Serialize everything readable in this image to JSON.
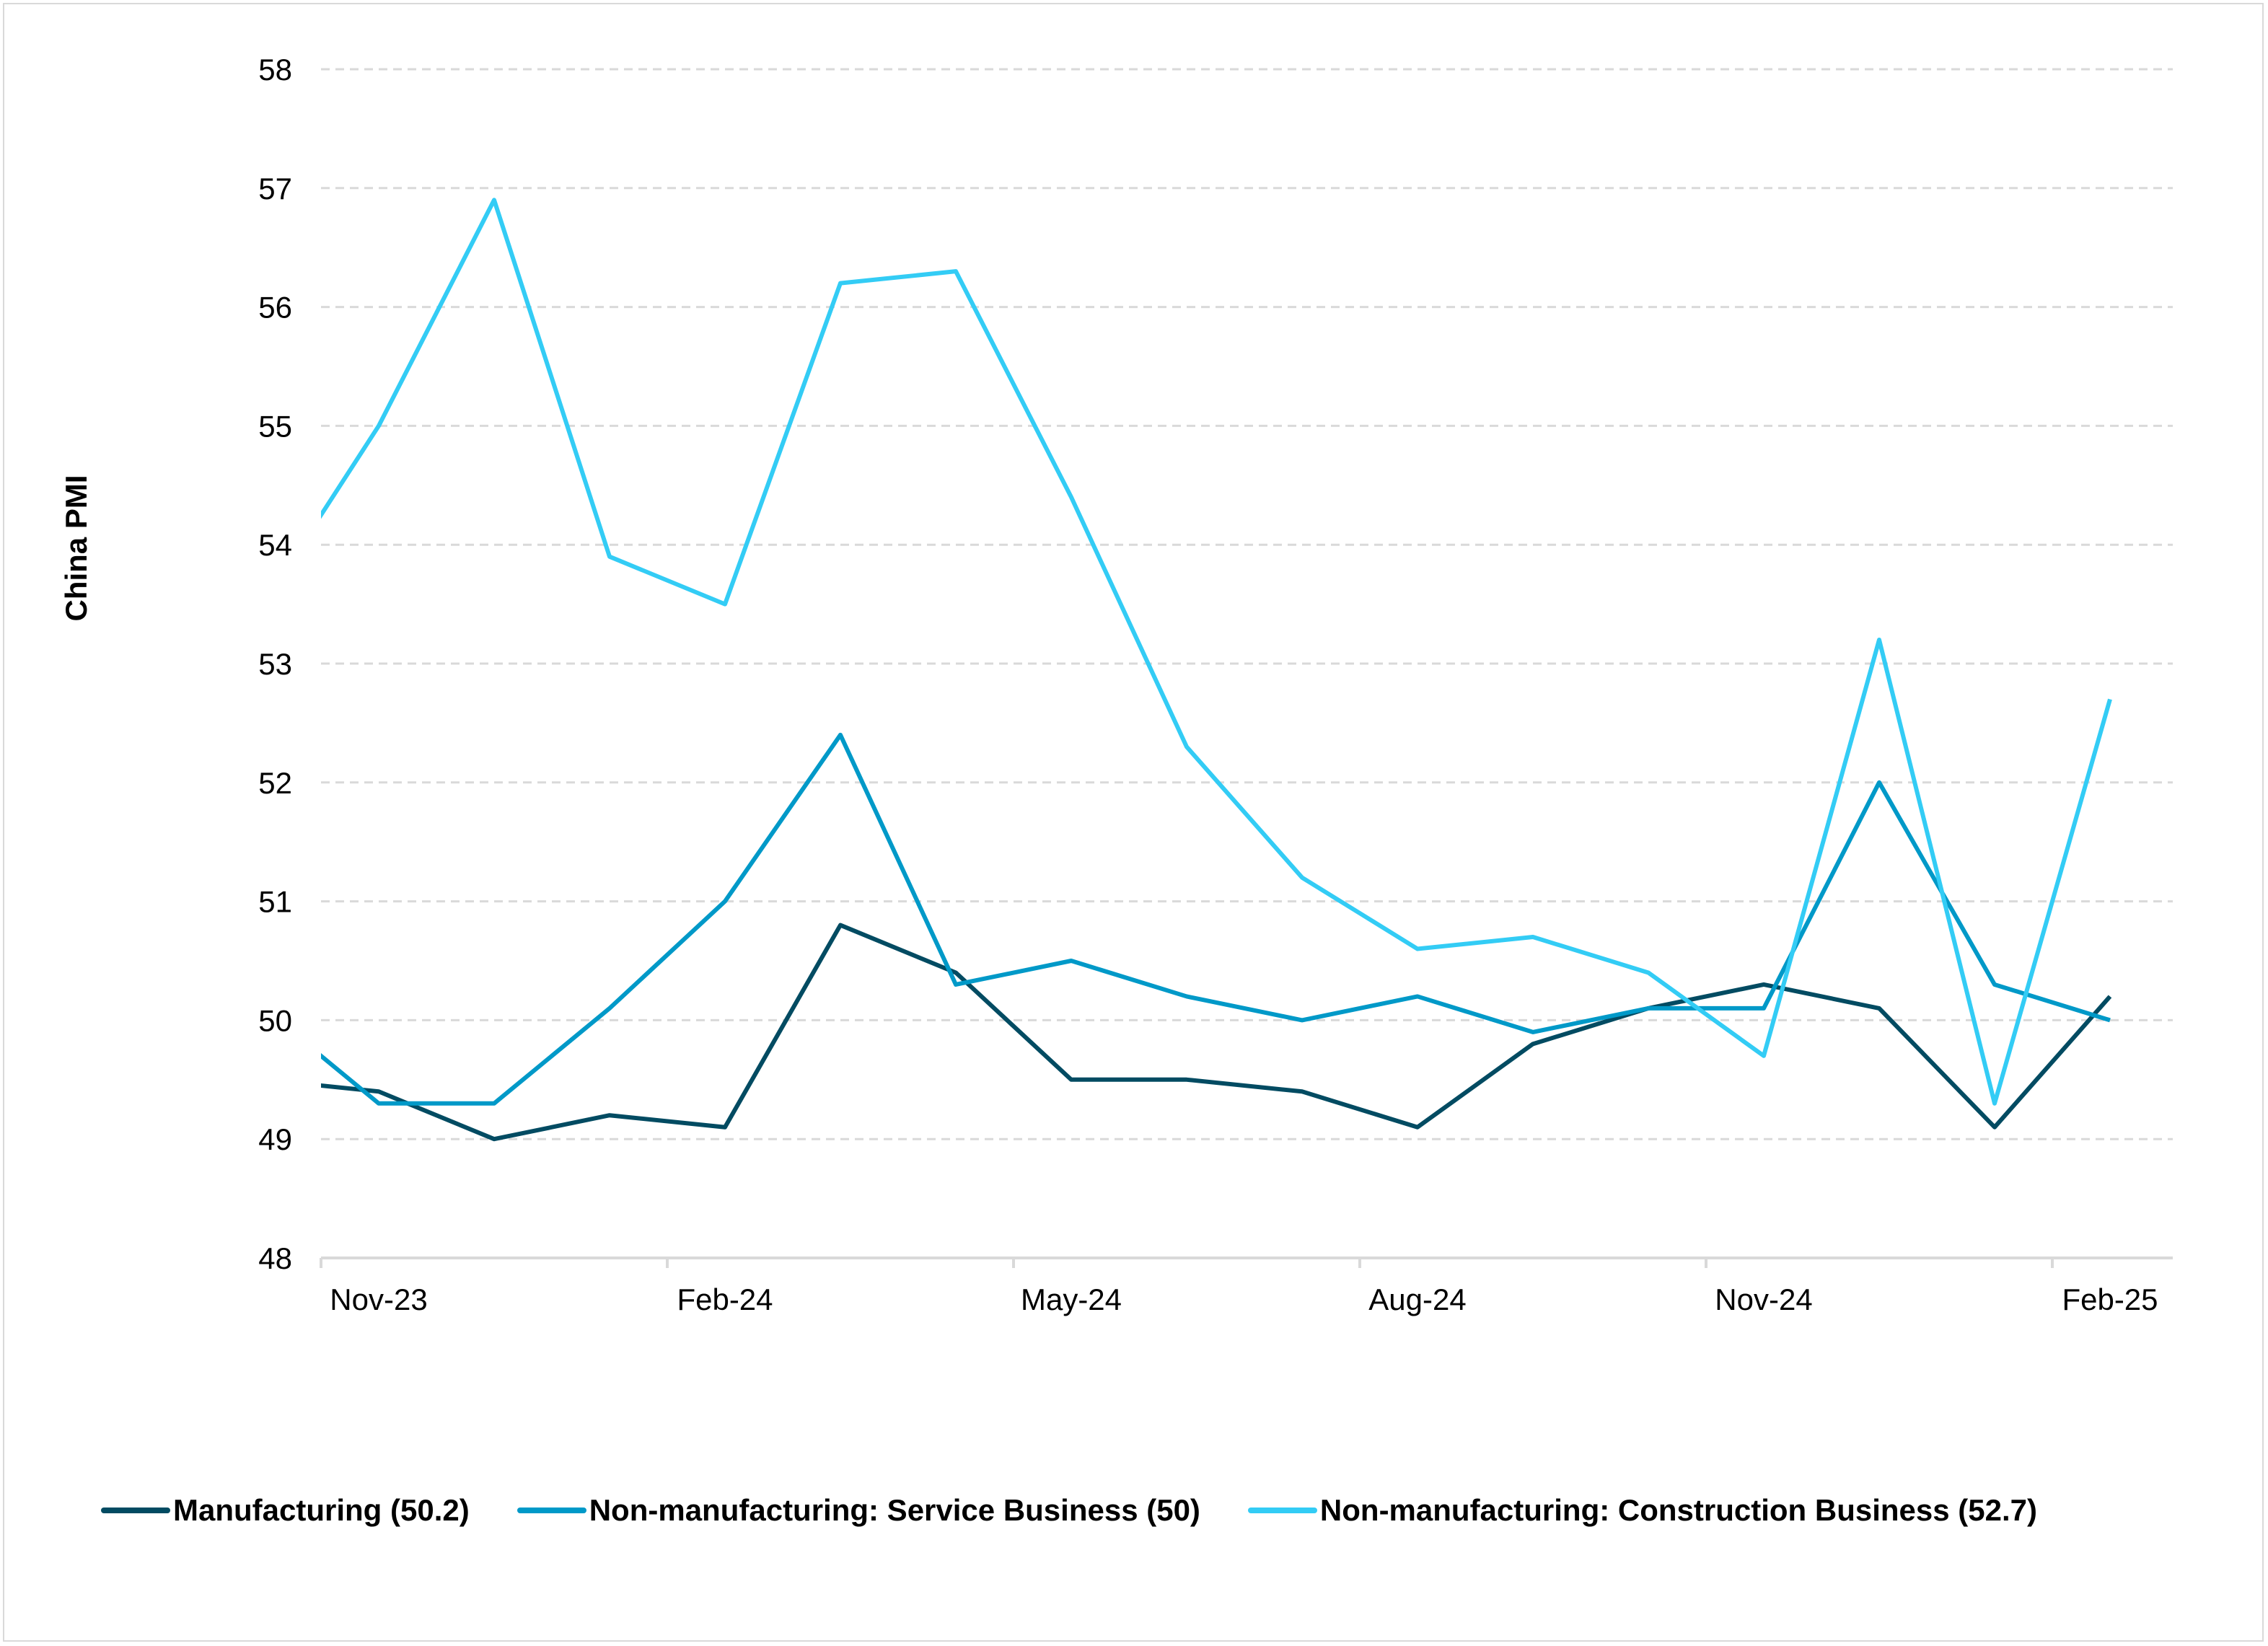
{
  "chart_data": {
    "type": "line",
    "title": "",
    "xlabel": "",
    "ylabel": "China PMI",
    "ylim": [
      48,
      58
    ],
    "yticks": [
      48,
      49,
      50,
      51,
      52,
      53,
      54,
      55,
      56,
      57,
      58
    ],
    "grid": "horizontal dashed",
    "legend_position": "bottom",
    "x": [
      "Oct-23",
      "Nov-23",
      "Dec-23",
      "Jan-24",
      "Feb-24",
      "Mar-24",
      "Apr-24",
      "May-24",
      "Jun-24",
      "Jul-24",
      "Aug-24",
      "Sep-24",
      "Oct-24",
      "Nov-24",
      "Dec-24",
      "Jan-25",
      "Feb-25"
    ],
    "xtick_labels": [
      "Nov-23",
      "Feb-24",
      "May-24",
      "Aug-24",
      "Nov-24",
      "Feb-25"
    ],
    "series": [
      {
        "name": "Manufacturing (50.2)",
        "color": "#024b62",
        "values": [
          49.5,
          49.4,
          49.0,
          49.2,
          49.1,
          50.8,
          50.4,
          49.5,
          49.5,
          49.4,
          49.1,
          49.8,
          50.1,
          50.3,
          50.1,
          49.1,
          50.2
        ]
      },
      {
        "name": "Non-manufacturing: Service Business (50)",
        "color": "#0099c8",
        "values": [
          50.1,
          49.3,
          49.3,
          50.1,
          51.0,
          52.4,
          50.3,
          50.5,
          50.2,
          50.0,
          50.2,
          49.9,
          50.1,
          50.1,
          52.0,
          50.3,
          50.0
        ]
      },
      {
        "name": "Non-manufacturing: Construction Business (52.7)",
        "color": "#33ccf5",
        "values": [
          53.5,
          55.0,
          56.9,
          53.9,
          53.5,
          56.2,
          56.3,
          54.4,
          52.3,
          51.2,
          50.6,
          50.7,
          50.4,
          49.7,
          53.2,
          49.3,
          52.7
        ]
      }
    ]
  }
}
